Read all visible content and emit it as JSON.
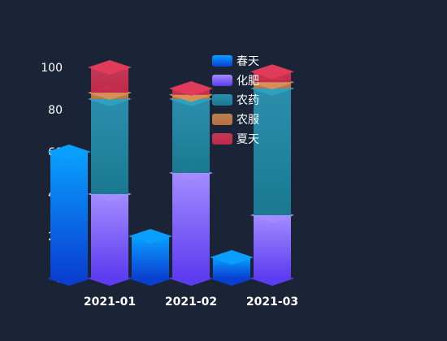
{
  "chart_data": {
    "type": "bar",
    "style": "3d-pictorial-bar",
    "categories": [
      "2021-01",
      "2021-02",
      "2021-03"
    ],
    "ylim": [
      0,
      100
    ],
    "yticks": [
      0,
      20,
      40,
      60,
      80,
      100
    ],
    "grid": false,
    "legend_position": "top-center",
    "series": [
      {
        "name": "春天",
        "group": "left",
        "values": [
          60,
          20,
          10
        ]
      },
      {
        "name": "化肥",
        "group": "right",
        "values": [
          40,
          50,
          30
        ]
      },
      {
        "name": "农药",
        "group": "right",
        "values": [
          45,
          35,
          60
        ]
      },
      {
        "name": "农服",
        "group": "right",
        "values": [
          3,
          2,
          3
        ]
      },
      {
        "name": "夏天",
        "group": "right",
        "values": [
          12,
          3,
          5
        ]
      }
    ],
    "colors": {
      "春天": [
        "#0a9fff",
        "#0a3fd0"
      ],
      "化肥": [
        "#a28cff",
        "#5d3bf0"
      ],
      "农药": [
        "#2ea0c0",
        "#1a7890"
      ],
      "农服": [
        "#d49058",
        "#b87040"
      ],
      "夏天": [
        "#e03c5a",
        "#c02848"
      ]
    }
  }
}
